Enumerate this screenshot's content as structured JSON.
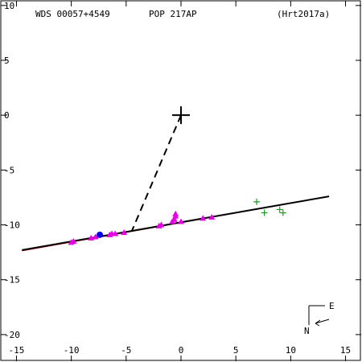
{
  "header": {
    "wds": "WDS 00057+4549",
    "pop": "POP 217AP",
    "ref": "(Hrt2017a)"
  },
  "compass": {
    "east": "E",
    "north": "N"
  },
  "colors": {
    "axes": "#000000",
    "orbit": "#000000",
    "magenta": "#e600e6",
    "green": "#1a9a1a",
    "blue": "#0000ee",
    "red": "#cc0000"
  },
  "chart_data": {
    "type": "scatter",
    "title": "",
    "xlim": [
      -16.5,
      16.5
    ],
    "ylim": [
      -22.5,
      10.5
    ],
    "x_ticks": [
      {
        "v": -15,
        "label": "-15"
      },
      {
        "v": -10,
        "label": "-10"
      },
      {
        "v": -5,
        "label": "-5"
      },
      {
        "v": 0,
        "label": "0"
      },
      {
        "v": 5,
        "label": "5"
      },
      {
        "v": 10,
        "label": "10"
      },
      {
        "v": 15,
        "label": "15"
      }
    ],
    "y_ticks": [
      {
        "v": 10,
        "label": "10"
      },
      {
        "v": 5,
        "label": "5"
      },
      {
        "v": 0,
        "label": "0"
      },
      {
        "v": -5,
        "label": "-5"
      },
      {
        "v": -10,
        "label": "-10"
      },
      {
        "v": -15,
        "label": "-15"
      },
      {
        "v": -20,
        "label": "-20"
      }
    ],
    "primary": [
      0,
      0
    ],
    "node_line": {
      "from": [
        0,
        0
      ],
      "to": [
        -4.5,
        -10.6
      ]
    },
    "orbit_line": {
      "from": [
        -14.5,
        -12.3
      ],
      "to": [
        13.5,
        -7.4
      ]
    },
    "series": [
      {
        "marker": "triangle",
        "color": "magenta",
        "points": [
          [
            -10,
            -11.6
          ],
          [
            -9.8,
            -11.5
          ],
          [
            -8.2,
            -11.2
          ],
          [
            -7.8,
            -11.1
          ],
          [
            -6.5,
            -10.9
          ],
          [
            -6.3,
            -10.8
          ],
          [
            -6.0,
            -10.8
          ],
          [
            -5.2,
            -10.7
          ],
          [
            -2,
            -10.1
          ],
          [
            -1.8,
            -10.0
          ],
          [
            -0.8,
            -9.7
          ],
          [
            -0.6,
            -9.5
          ],
          [
            -0.5,
            -9.2
          ],
          [
            -0.5,
            -9.0
          ],
          [
            0,
            -9.7
          ],
          [
            2,
            -9.4
          ],
          [
            2.8,
            -9.3
          ]
        ]
      },
      {
        "marker": "plus",
        "color": "green",
        "points": [
          [
            6.9,
            -7.9
          ],
          [
            7.6,
            -8.9
          ],
          [
            9.0,
            -8.6
          ],
          [
            9.3,
            -8.9
          ]
        ]
      },
      {
        "marker": "dot",
        "color": "blue",
        "points": [
          [
            -7.4,
            -10.9
          ]
        ]
      }
    ]
  }
}
